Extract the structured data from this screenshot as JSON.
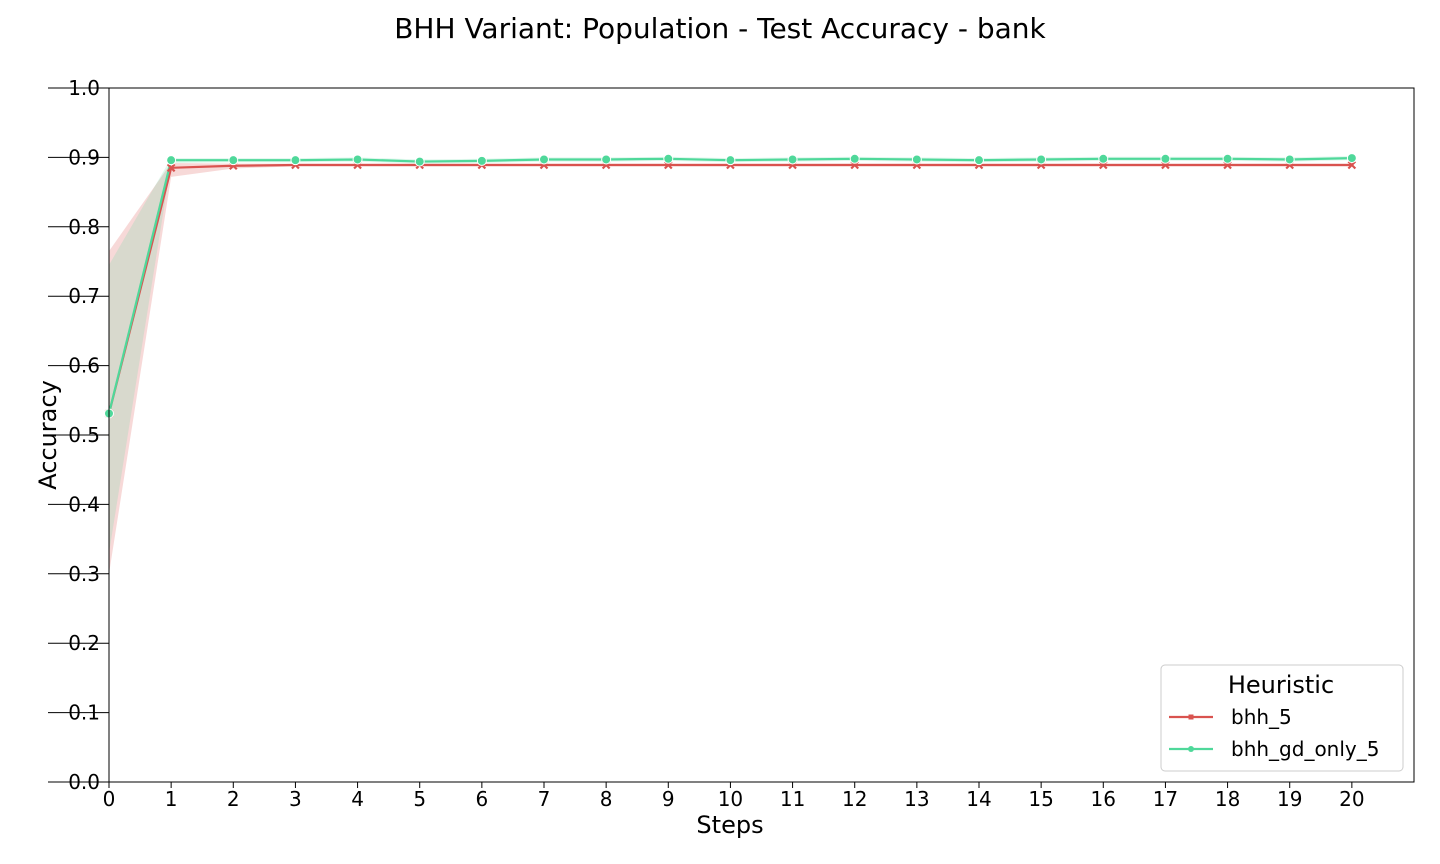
{
  "chart_data": {
    "type": "line",
    "title": "BHH Variant: Population - Test Accuracy - bank",
    "xlabel": "Steps",
    "ylabel": "Accuracy",
    "x": [
      0,
      1,
      2,
      3,
      4,
      5,
      6,
      7,
      8,
      9,
      10,
      11,
      12,
      13,
      14,
      15,
      16,
      17,
      18,
      19,
      20
    ],
    "xlim": [
      0,
      21
    ],
    "ylim": [
      0.0,
      1.0
    ],
    "x_ticks": [
      "0",
      "1",
      "2",
      "3",
      "4",
      "5",
      "6",
      "7",
      "8",
      "9",
      "10",
      "11",
      "12",
      "13",
      "14",
      "15",
      "16",
      "17",
      "18",
      "19",
      "20"
    ],
    "y_ticks": [
      "0.0",
      "0.1",
      "0.2",
      "0.3",
      "0.4",
      "0.5",
      "0.6",
      "0.7",
      "0.8",
      "0.9",
      "1.0"
    ],
    "y_tick_values": [
      0.0,
      0.1,
      0.2,
      0.3,
      0.4,
      0.5,
      0.6,
      0.7,
      0.8,
      0.9,
      1.0
    ],
    "grid": false,
    "legend": {
      "title": "Heuristic",
      "position": "bottom-right"
    },
    "series": [
      {
        "name": "bhh_5",
        "color": "#d9534f",
        "marker": "x",
        "values": [
          0.531,
          0.885,
          0.888,
          0.889,
          0.889,
          0.889,
          0.889,
          0.889,
          0.889,
          0.889,
          0.889,
          0.889,
          0.889,
          0.889,
          0.889,
          0.889,
          0.889,
          0.889,
          0.889,
          0.889,
          0.889
        ],
        "ci_low": [
          0.3,
          0.872,
          0.884,
          0.887,
          0.887,
          0.887,
          0.887,
          0.887,
          0.887,
          0.887,
          0.887,
          0.887,
          0.887,
          0.887,
          0.887,
          0.887,
          0.887,
          0.887,
          0.887,
          0.887,
          0.887
        ],
        "ci_high": [
          0.765,
          0.892,
          0.891,
          0.891,
          0.891,
          0.891,
          0.891,
          0.891,
          0.891,
          0.891,
          0.891,
          0.891,
          0.891,
          0.891,
          0.891,
          0.891,
          0.891,
          0.891,
          0.891,
          0.891,
          0.891
        ]
      },
      {
        "name": "bhh_gd_only_5",
        "color": "#4fd89a",
        "marker": "o",
        "values": [
          0.531,
          0.896,
          0.896,
          0.896,
          0.897,
          0.894,
          0.895,
          0.897,
          0.897,
          0.898,
          0.896,
          0.897,
          0.898,
          0.897,
          0.896,
          0.897,
          0.898,
          0.898,
          0.898,
          0.897,
          0.899
        ],
        "ci_low": [
          0.33,
          0.892,
          0.893,
          0.893,
          0.894,
          0.891,
          0.892,
          0.894,
          0.894,
          0.895,
          0.893,
          0.894,
          0.895,
          0.894,
          0.893,
          0.894,
          0.895,
          0.895,
          0.895,
          0.894,
          0.896
        ],
        "ci_high": [
          0.745,
          0.899,
          0.899,
          0.899,
          0.9,
          0.897,
          0.898,
          0.9,
          0.9,
          0.901,
          0.899,
          0.9,
          0.901,
          0.9,
          0.899,
          0.9,
          0.901,
          0.901,
          0.901,
          0.9,
          0.902
        ]
      }
    ]
  }
}
